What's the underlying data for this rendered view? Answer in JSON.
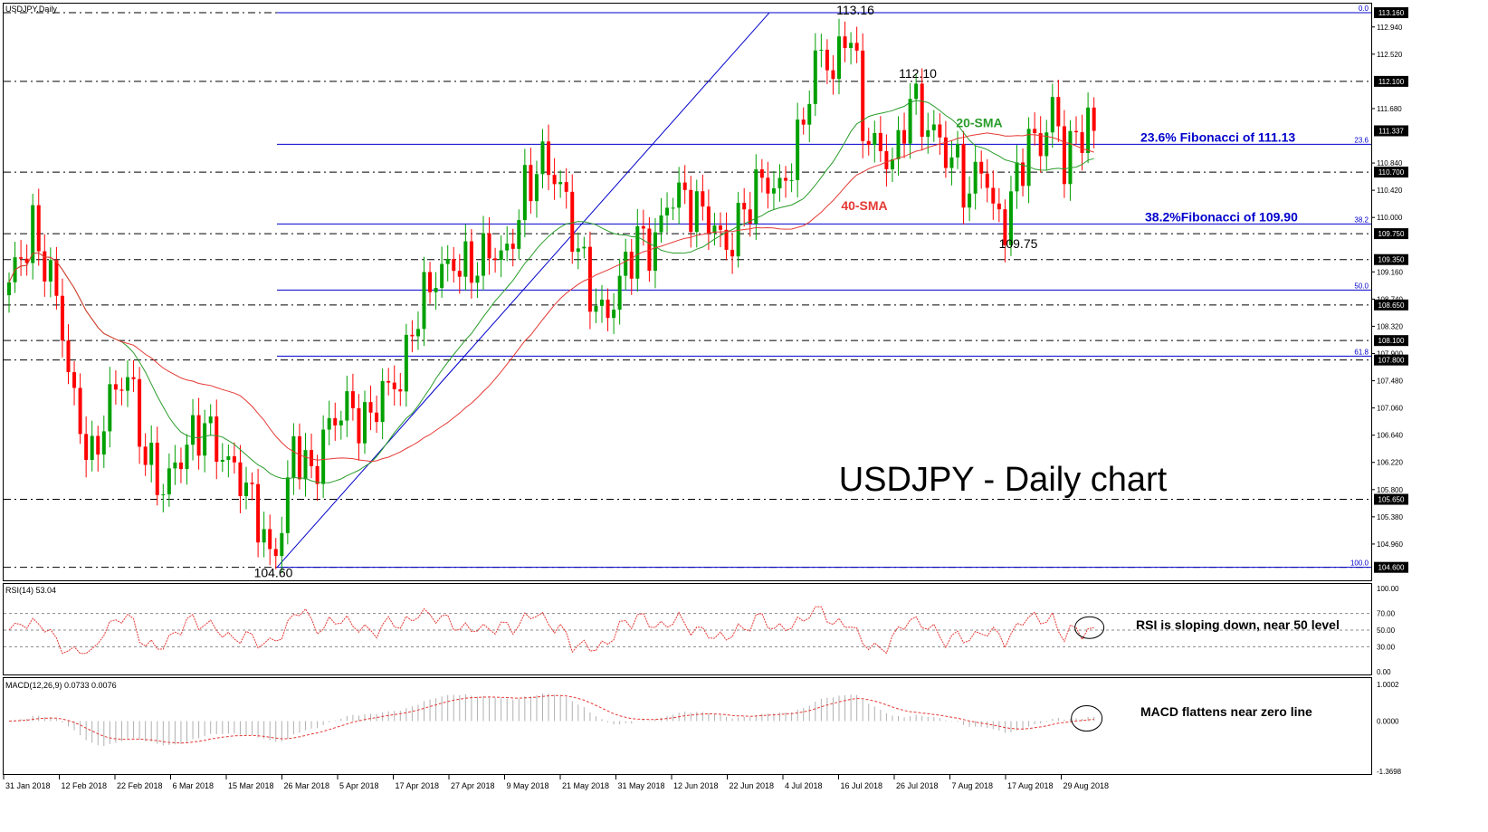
{
  "chart_data": [
    {
      "panel": "price",
      "type": "candlestick",
      "title": "USDJPY,Daily",
      "overlay_title": "USDJPY - Daily chart",
      "ylim": [
        104.4,
        113.3
      ],
      "grid": false,
      "price_ticks": [
        "112.940",
        "112.520",
        "111.680",
        "110.840",
        "110.420",
        "110.000",
        "109.160",
        "108.740",
        "108.320",
        "107.900",
        "107.480",
        "107.060",
        "106.640",
        "106.220",
        "105.800",
        "105.380",
        "104.960"
      ],
      "series_labels": {
        "sma20": "20-SMA",
        "sma40": "40-SMA"
      },
      "colors": {
        "up": "#00a000",
        "down": "#ff0000",
        "sma20": "#2a9d2a",
        "sma40": "#e53935",
        "fib": "#0000cc",
        "level": "#000000",
        "trend": "#0000cc",
        "axis_tag_bg": "#000000",
        "axis_tag_fg": "#ffffff"
      },
      "horizontal_levels": [
        {
          "value": 113.16,
          "tag": "113.160"
        },
        {
          "value": 112.1,
          "tag": "112.100"
        },
        {
          "value": 110.7,
          "tag": "110.700"
        },
        {
          "value": 109.75,
          "tag": "109.750"
        },
        {
          "value": 109.35,
          "tag": "109.350"
        },
        {
          "value": 108.65,
          "tag": "108.650"
        },
        {
          "value": 108.1,
          "tag": "108.100"
        },
        {
          "value": 107.8,
          "tag": "107.800"
        },
        {
          "value": 105.65,
          "tag": "105.650"
        },
        {
          "value": 104.6,
          "tag": "104.600"
        }
      ],
      "current_price": {
        "value": 111.337,
        "tag": "111.337"
      },
      "fibonacci": [
        {
          "ratio": "0.0",
          "value": 113.16
        },
        {
          "ratio": "23.6",
          "value": 111.13
        },
        {
          "ratio": "38.2",
          "value": 109.9
        },
        {
          "ratio": "50.0",
          "value": 108.88
        },
        {
          "ratio": "61.8",
          "value": 107.86
        },
        {
          "ratio": "100.0",
          "value": 104.6
        }
      ],
      "trendline": {
        "from": {
          "date": "26 Mar 2018",
          "value": 104.6
        },
        "to": {
          "date": "4 Jul 2018",
          "value": 113.16
        }
      },
      "annotations": [
        {
          "text": "113.16",
          "value": 113.16
        },
        {
          "text": "112.10",
          "value": 112.1
        },
        {
          "text": "109.75",
          "value": 109.75
        },
        {
          "text": "104.60",
          "value": 104.6
        },
        {
          "text": "20-SMA",
          "value": 111.6
        },
        {
          "text": "40-SMA",
          "value": 110.2
        },
        {
          "text": "23.6% Fibonacci of 111.13",
          "value": 111.13
        },
        {
          "text": "38.2%Fibonacci of 109.90",
          "value": 109.9
        }
      ],
      "x_labels": [
        "31 Jan 2018",
        "12 Feb 2018",
        "22 Feb 2018",
        "6 Mar 2018",
        "15 Mar 2018",
        "26 Mar 2018",
        "5 Apr 2018",
        "17 Apr 2018",
        "27 Apr 2018",
        "9 May 2018",
        "21 May 2018",
        "31 May 2018",
        "12 Jun 2018",
        "22 Jun 2018",
        "4 Jul 2018",
        "16 Jul 2018",
        "26 Jul 2018",
        "7 Aug 2018",
        "17 Aug 2018",
        "29 Aug 2018"
      ],
      "close_anchors": [
        [
          0,
          109.0
        ],
        [
          4,
          109.8
        ],
        [
          8,
          108.8
        ],
        [
          11,
          107.1
        ],
        [
          14,
          106.2
        ],
        [
          17,
          107.2
        ],
        [
          20,
          107.6
        ],
        [
          23,
          106.3
        ],
        [
          26,
          105.8
        ],
        [
          30,
          106.5
        ],
        [
          33,
          106.8
        ],
        [
          36,
          106.3
        ],
        [
          39,
          106.0
        ],
        [
          42,
          105.4
        ],
        [
          44,
          104.7
        ],
        [
          46,
          105.2
        ],
        [
          48,
          106.5
        ],
        [
          51,
          106.0
        ],
        [
          54,
          106.8
        ],
        [
          57,
          107.1
        ],
        [
          60,
          106.8
        ],
        [
          63,
          107.3
        ],
        [
          66,
          107.5
        ],
        [
          69,
          108.6
        ],
        [
          72,
          109.1
        ],
        [
          75,
          109.3
        ],
        [
          78,
          109.2
        ],
        [
          81,
          109.5
        ],
        [
          84,
          109.4
        ],
        [
          87,
          110.4
        ],
        [
          90,
          110.9
        ],
        [
          93,
          110.5
        ],
        [
          95,
          109.8
        ],
        [
          97,
          109.2
        ],
        [
          99,
          108.6
        ],
        [
          101,
          108.5
        ],
        [
          103,
          109.0
        ],
        [
          106,
          109.7
        ],
        [
          108,
          109.5
        ],
        [
          110,
          109.9
        ],
        [
          112,
          110.4
        ],
        [
          115,
          110.2
        ],
        [
          118,
          110.0
        ],
        [
          121,
          109.5
        ],
        [
          124,
          110.1
        ],
        [
          127,
          110.6
        ],
        [
          130,
          110.4
        ],
        [
          133,
          111.1
        ],
        [
          135,
          112.0
        ],
        [
          137,
          112.6
        ],
        [
          139,
          112.2
        ],
        [
          141,
          112.8
        ],
        [
          142,
          112.9
        ],
        [
          144,
          111.4
        ],
        [
          146,
          111.1
        ],
        [
          148,
          110.9
        ],
        [
          150,
          111.0
        ],
        [
          152,
          111.9
        ],
        [
          154,
          111.5
        ],
        [
          156,
          111.3
        ],
        [
          158,
          111.0
        ],
        [
          160,
          110.8
        ],
        [
          162,
          110.3
        ],
        [
          164,
          110.9
        ],
        [
          166,
          110.1
        ],
        [
          168,
          109.9
        ],
        [
          170,
          110.6
        ],
        [
          172,
          111.2
        ],
        [
          174,
          111.1
        ],
        [
          176,
          111.7
        ],
        [
          178,
          110.9
        ],
        [
          180,
          111.2
        ],
        [
          182,
          111.5
        ],
        [
          183,
          111.34
        ]
      ],
      "n_candles": 184
    },
    {
      "panel": "rsi",
      "type": "line",
      "title": "RSI(14) 53.04",
      "ylim": [
        0,
        100
      ],
      "ticks": [
        "100.00",
        "70.00",
        "50.00",
        "30.00",
        "0.00"
      ],
      "levels": [
        70,
        50,
        30
      ],
      "current_value": 53.04,
      "annotation": "RSI is sloping down, near 50 level"
    },
    {
      "panel": "macd",
      "type": "histogram+line",
      "title": "MACD(12,26,9) 0.0733 0.0076",
      "ylim": [
        -1.3698,
        1.0002
      ],
      "ticks": [
        "1.0002",
        "0.0000",
        "-1.3698"
      ],
      "macd_value": 0.0733,
      "signal_value": 0.0076,
      "annotation": "MACD flattens near zero line"
    }
  ]
}
